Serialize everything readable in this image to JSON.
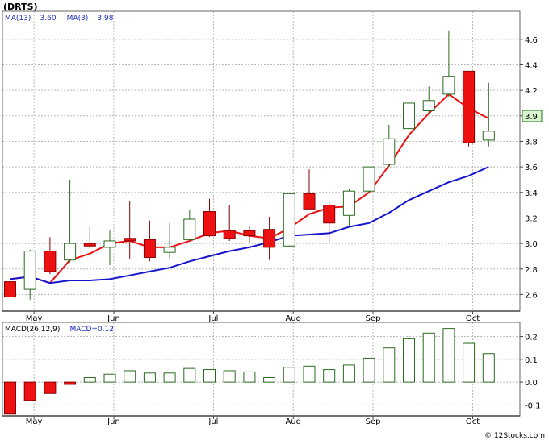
{
  "title": "(DRTS)",
  "watermark": "© 12Stocks.com",
  "colors": {
    "up_fill": "#ffffff",
    "up_stroke": "#2a6a1e",
    "down_fill": "#ee1111",
    "down_stroke": "#8a0000",
    "ma13": "#1515d0",
    "ma3": "#ee1111",
    "macd_stroke": "#2a6a1e",
    "price_tag_bg": "#d8f5d0",
    "price_tag_border": "#2a6a1e"
  },
  "price_legend": {
    "ma13_label": "MA(13)",
    "ma13_value": "3.60",
    "ma3_label": "MA(3)",
    "ma3_value": "3.98"
  },
  "price_tag": "3.9",
  "macd_legend": {
    "label": "MACD(26,12,9)",
    "value_label": "MACD=0.12"
  },
  "chart_data": [
    {
      "type": "candlestick",
      "title": "(DRTS)",
      "ylim": [
        2.47,
        4.82
      ],
      "yticks": [
        "2.6",
        "2.8",
        "3.0",
        "3.2",
        "3.4",
        "3.6",
        "3.8",
        "4.0",
        "4.2",
        "4.4",
        "4.6"
      ],
      "ytick_values": [
        2.6,
        2.8,
        3.0,
        3.2,
        3.4,
        3.6,
        3.8,
        4.0,
        4.2,
        4.4,
        4.6
      ],
      "month_labels": [
        {
          "label": "May",
          "week": 1.2
        },
        {
          "label": "Jun",
          "week": 5.2
        },
        {
          "label": "Jul",
          "week": 10.2
        },
        {
          "label": "Aug",
          "week": 14.2
        },
        {
          "label": "Sep",
          "week": 18.2
        },
        {
          "label": "Oct",
          "week": 23.2
        }
      ],
      "grid": true,
      "candles": [
        {
          "o": 2.7,
          "h": 2.8,
          "l": 2.48,
          "c": 2.58
        },
        {
          "o": 2.64,
          "h": 2.95,
          "l": 2.56,
          "c": 2.94
        },
        {
          "o": 2.94,
          "h": 3.05,
          "l": 2.76,
          "c": 2.78
        },
        {
          "o": 2.87,
          "h": 3.5,
          "l": 2.85,
          "c": 3.0
        },
        {
          "o": 3.0,
          "h": 3.13,
          "l": 2.96,
          "c": 2.98
        },
        {
          "o": 2.97,
          "h": 3.1,
          "l": 2.83,
          "c": 3.02
        },
        {
          "o": 3.04,
          "h": 3.33,
          "l": 2.88,
          "c": 3.02
        },
        {
          "o": 3.03,
          "h": 3.18,
          "l": 2.86,
          "c": 2.89
        },
        {
          "o": 2.93,
          "h": 3.16,
          "l": 2.88,
          "c": 2.97
        },
        {
          "o": 3.03,
          "h": 3.26,
          "l": 3.02,
          "c": 3.19
        },
        {
          "o": 3.25,
          "h": 3.35,
          "l": 3.05,
          "c": 3.06
        },
        {
          "o": 3.1,
          "h": 3.3,
          "l": 3.02,
          "c": 3.04
        },
        {
          "o": 3.1,
          "h": 3.14,
          "l": 3.0,
          "c": 3.06
        },
        {
          "o": 3.11,
          "h": 3.21,
          "l": 2.87,
          "c": 2.97
        },
        {
          "o": 2.98,
          "h": 3.4,
          "l": 2.97,
          "c": 3.39
        },
        {
          "o": 3.39,
          "h": 3.58,
          "l": 3.27,
          "c": 3.27
        },
        {
          "o": 3.3,
          "h": 3.32,
          "l": 3.01,
          "c": 3.16
        },
        {
          "o": 3.22,
          "h": 3.43,
          "l": 3.14,
          "c": 3.41
        },
        {
          "o": 3.41,
          "h": 3.6,
          "l": 3.4,
          "c": 3.6
        },
        {
          "o": 3.62,
          "h": 3.93,
          "l": 3.6,
          "c": 3.82
        },
        {
          "o": 3.9,
          "h": 4.12,
          "l": 3.88,
          "c": 4.1
        },
        {
          "o": 4.04,
          "h": 4.23,
          "l": 4.01,
          "c": 4.12
        },
        {
          "o": 4.17,
          "h": 4.67,
          "l": 4.15,
          "c": 4.31
        },
        {
          "o": 4.35,
          "h": 4.35,
          "l": 3.76,
          "c": 3.79
        },
        {
          "o": 3.81,
          "h": 4.26,
          "l": 3.76,
          "c": 3.88
        }
      ],
      "series": [
        {
          "name": "MA(13)",
          "values": [
            2.72,
            2.74,
            2.69,
            2.71,
            2.71,
            2.72,
            2.75,
            2.78,
            2.81,
            2.86,
            2.9,
            2.94,
            2.97,
            3.01,
            3.06,
            3.07,
            3.08,
            3.13,
            3.16,
            3.24,
            3.34,
            3.41,
            3.48,
            3.53,
            3.6
          ]
        },
        {
          "name": "MA(3)",
          "values": [
            2.72,
            2.74,
            2.69,
            2.87,
            2.92,
            3.0,
            3.02,
            2.97,
            2.97,
            3.02,
            3.08,
            3.1,
            3.06,
            3.04,
            3.12,
            3.23,
            3.28,
            3.29,
            3.4,
            3.61,
            3.85,
            4.02,
            4.17,
            4.06,
            3.98
          ]
        }
      ]
    },
    {
      "type": "bar",
      "title": "MACD(26,12,9)",
      "ylim": [
        -0.148,
        0.262
      ],
      "yticks": [
        "0.2",
        "0.1",
        "0.0",
        "-0.1"
      ],
      "ytick_values": [
        0.2,
        0.1,
        0.0,
        -0.1
      ],
      "month_labels": [
        {
          "label": "May",
          "week": 1.2
        },
        {
          "label": "Jun",
          "week": 5.2
        },
        {
          "label": "Jul",
          "week": 10.2
        },
        {
          "label": "Aug",
          "week": 14.2
        },
        {
          "label": "Sep",
          "week": 18.2
        },
        {
          "label": "Oct",
          "week": 23.2
        }
      ],
      "values": [
        -0.14,
        -0.08,
        -0.05,
        -0.01,
        0.02,
        0.035,
        0.05,
        0.04,
        0.04,
        0.06,
        0.055,
        0.05,
        0.045,
        0.02,
        0.065,
        0.07,
        0.055,
        0.075,
        0.105,
        0.15,
        0.19,
        0.215,
        0.235,
        0.17,
        0.125
      ]
    }
  ]
}
